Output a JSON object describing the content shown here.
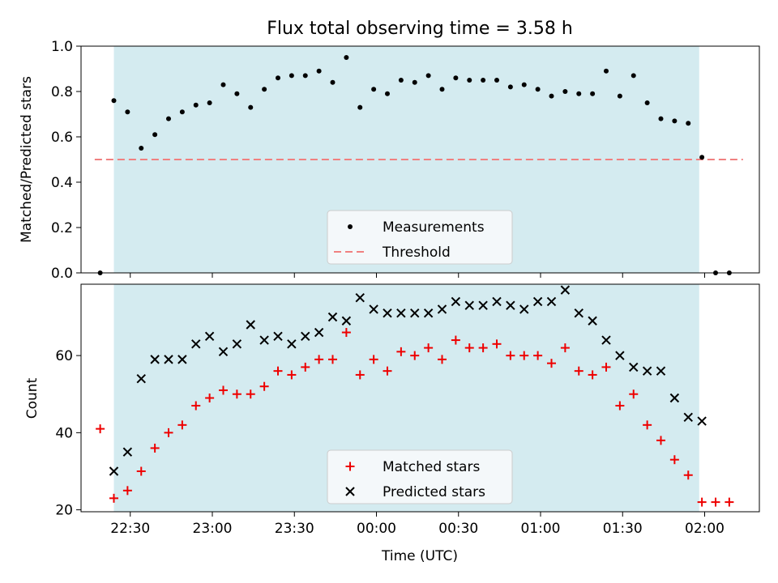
{
  "title": "Flux total observing time = 3.58 h",
  "colors": {
    "shade": "#d4ebf0",
    "threshold": "#f08080",
    "measurement": "#000000",
    "matched": "#ee0000",
    "predicted": "#000000"
  },
  "chart_data": [
    {
      "type": "scatter",
      "ylabel": "Matched/Predicted stars",
      "ylim": [
        0,
        1.0
      ],
      "yticks": [
        "0.0",
        "0.2",
        "0.4",
        "0.6",
        "0.8",
        "1.0"
      ],
      "xlim": [
        "22:12",
        "02:20"
      ],
      "shaded_span": [
        "22:24",
        "01:58"
      ],
      "threshold": 0.5,
      "legend_position": "lower center",
      "legend": [
        "Measurements",
        "Threshold"
      ],
      "series": [
        {
          "name": "Measurements",
          "x": [
            "22:19",
            "22:24",
            "22:29",
            "22:34",
            "22:39",
            "22:44",
            "22:49",
            "22:54",
            "22:59",
            "23:04",
            "23:09",
            "23:14",
            "23:19",
            "23:24",
            "23:29",
            "23:34",
            "23:39",
            "23:44",
            "23:49",
            "23:54",
            "23:59",
            "00:04",
            "00:09",
            "00:14",
            "00:19",
            "00:24",
            "00:29",
            "00:34",
            "00:39",
            "00:44",
            "00:49",
            "00:54",
            "00:59",
            "01:04",
            "01:09",
            "01:14",
            "01:19",
            "01:24",
            "01:29",
            "01:34",
            "01:39",
            "01:44",
            "01:49",
            "01:54",
            "01:59",
            "02:04",
            "02:09"
          ],
          "values": [
            0.0,
            0.76,
            0.71,
            0.55,
            0.61,
            0.68,
            0.71,
            0.74,
            0.75,
            0.83,
            0.79,
            0.73,
            0.81,
            0.86,
            0.87,
            0.87,
            0.89,
            0.84,
            0.95,
            0.73,
            0.81,
            0.79,
            0.85,
            0.84,
            0.87,
            0.81,
            0.86,
            0.85,
            0.85,
            0.85,
            0.82,
            0.83,
            0.81,
            0.78,
            0.8,
            0.79,
            0.79,
            0.89,
            0.78,
            0.87,
            0.75,
            0.68,
            0.67,
            0.66,
            0.51,
            0.0,
            0.0
          ]
        }
      ]
    },
    {
      "type": "scatter",
      "ylabel": "Count",
      "xlabel": "Time (UTC)",
      "ylim": [
        19.5,
        78.5
      ],
      "yticks": [
        "20",
        "40",
        "60"
      ],
      "xticks": [
        "22:30",
        "23:00",
        "23:30",
        "00:00",
        "00:30",
        "01:00",
        "01:30",
        "02:00"
      ],
      "xlim": [
        "22:12",
        "02:20"
      ],
      "shaded_span": [
        "22:24",
        "01:58"
      ],
      "legend_position": "lower center",
      "legend": [
        "Matched stars",
        "Predicted stars"
      ],
      "series": [
        {
          "name": "Matched stars",
          "x": [
            "22:19",
            "22:24",
            "22:29",
            "22:34",
            "22:39",
            "22:44",
            "22:49",
            "22:54",
            "22:59",
            "23:04",
            "23:09",
            "23:14",
            "23:19",
            "23:24",
            "23:29",
            "23:34",
            "23:39",
            "23:44",
            "23:49",
            "23:54",
            "23:59",
            "00:04",
            "00:09",
            "00:14",
            "00:19",
            "00:24",
            "00:29",
            "00:34",
            "00:39",
            "00:44",
            "00:49",
            "00:54",
            "00:59",
            "01:04",
            "01:09",
            "01:14",
            "01:19",
            "01:24",
            "01:29",
            "01:34",
            "01:39",
            "01:44",
            "01:49",
            "01:54",
            "01:59",
            "02:04",
            "02:09"
          ],
          "values": [
            41,
            23,
            25,
            30,
            36,
            40,
            42,
            47,
            49,
            51,
            50,
            50,
            52,
            56,
            55,
            57,
            59,
            59,
            66,
            55,
            59,
            56,
            61,
            60,
            62,
            59,
            64,
            62,
            62,
            63,
            60,
            60,
            60,
            58,
            62,
            56,
            55,
            57,
            47,
            50,
            42,
            38,
            33,
            29,
            22,
            22,
            22
          ]
        },
        {
          "name": "Predicted stars",
          "x": [
            "22:24",
            "22:29",
            "22:34",
            "22:39",
            "22:44",
            "22:49",
            "22:54",
            "22:59",
            "23:04",
            "23:09",
            "23:14",
            "23:19",
            "23:24",
            "23:29",
            "23:34",
            "23:39",
            "23:44",
            "23:49",
            "23:54",
            "23:59",
            "00:04",
            "00:09",
            "00:14",
            "00:19",
            "00:24",
            "00:29",
            "00:34",
            "00:39",
            "00:44",
            "00:49",
            "00:54",
            "00:59",
            "01:04",
            "01:09",
            "01:14",
            "01:19",
            "01:24",
            "01:29",
            "01:34",
            "01:39",
            "01:44",
            "01:49",
            "01:54",
            "01:59"
          ],
          "values": [
            30,
            35,
            54,
            59,
            59,
            59,
            63,
            65,
            61,
            63,
            68,
            64,
            65,
            63,
            65,
            66,
            70,
            69,
            75,
            72,
            71,
            71,
            71,
            71,
            72,
            74,
            73,
            73,
            74,
            73,
            72,
            74,
            74,
            77,
            71,
            69,
            64,
            60,
            57,
            56,
            56,
            49,
            44,
            43
          ]
        }
      ]
    }
  ]
}
